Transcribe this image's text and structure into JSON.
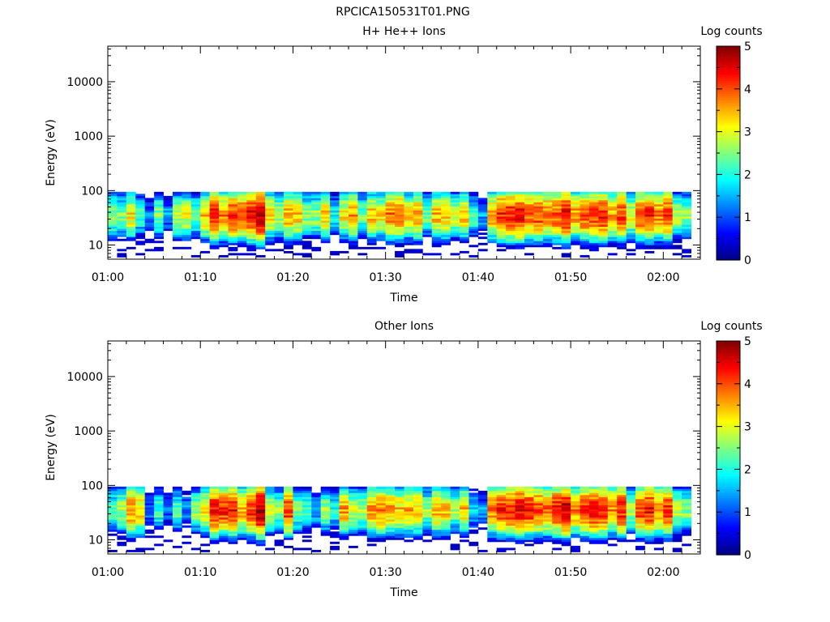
{
  "figure": {
    "title": "RPCICA150531T01.PNG"
  },
  "chart_data": [
    {
      "type": "heatmap",
      "title": "H+ He++ Ions",
      "xlabel": "Time",
      "ylabel": "Energy (eV)",
      "x_ticks": [
        "01:00",
        "01:10",
        "01:20",
        "01:30",
        "01:40",
        "01:50",
        "02:00"
      ],
      "x_range_minutes": [
        0,
        64
      ],
      "y_scale": "log",
      "y_ticks": [
        10,
        100,
        1000,
        10000
      ],
      "y_range": [
        5.5,
        45000
      ],
      "data_energy_range_eV": [
        6,
        95
      ],
      "colorbar": {
        "label": "Log counts",
        "range": [
          0,
          5
        ],
        "ticks": [
          0,
          1,
          2,
          3,
          4,
          5
        ]
      },
      "time_minutes": [
        0,
        1,
        2,
        3,
        4,
        5,
        6,
        7,
        8,
        9,
        10,
        11,
        12,
        13,
        14,
        15,
        16,
        17,
        18,
        19,
        20,
        21,
        22,
        23,
        24,
        25,
        26,
        27,
        28,
        29,
        30,
        31,
        32,
        33,
        34,
        35,
        36,
        37,
        38,
        39,
        40,
        41,
        42,
        43,
        44,
        45,
        46,
        47,
        48,
        49,
        50,
        51,
        52,
        53,
        54,
        55,
        56,
        57,
        58,
        59,
        60,
        61,
        62
      ],
      "peak_log_counts": [
        2.7,
        2.5,
        3.2,
        2.2,
        1.2,
        2.5,
        1.4,
        2.9,
        3.0,
        2.4,
        3.5,
        4.3,
        3.8,
        4.2,
        4.0,
        4.5,
        4.8,
        3.3,
        2.8,
        3.6,
        3.4,
        2.6,
        2.7,
        3.4,
        2.0,
        3.2,
        3.6,
        2.4,
        3.4,
        3.2,
        3.8,
        4.0,
        3.3,
        3.7,
        2.4,
        3.5,
        3.4,
        2.9,
        3.4,
        2.2,
        1.5,
        3.6,
        4.2,
        4.3,
        4.4,
        4.0,
        4.1,
        3.9,
        4.0,
        4.6,
        3.7,
        4.1,
        4.2,
        4.3,
        3.6,
        4.1,
        3.0,
        4.1,
        4.2,
        3.8,
        4.1,
        2.8,
        2.6
      ]
    },
    {
      "type": "heatmap",
      "title": "Other Ions",
      "xlabel": "Time",
      "ylabel": "Energy (eV)",
      "x_ticks": [
        "01:00",
        "01:10",
        "01:20",
        "01:30",
        "01:40",
        "01:50",
        "02:00"
      ],
      "x_range_minutes": [
        0,
        64
      ],
      "y_scale": "log",
      "y_ticks": [
        10,
        100,
        1000,
        10000
      ],
      "y_range": [
        5.5,
        45000
      ],
      "data_energy_range_eV": [
        6,
        95
      ],
      "colorbar": {
        "label": "Log counts",
        "range": [
          0,
          5
        ],
        "ticks": [
          0,
          1,
          2,
          3,
          4,
          5
        ]
      },
      "time_minutes": [
        0,
        1,
        2,
        3,
        4,
        5,
        6,
        7,
        8,
        9,
        10,
        11,
        12,
        13,
        14,
        15,
        16,
        17,
        18,
        19,
        20,
        21,
        22,
        23,
        24,
        25,
        26,
        27,
        28,
        29,
        30,
        31,
        32,
        33,
        34,
        35,
        36,
        37,
        38,
        39,
        40,
        41,
        42,
        43,
        44,
        45,
        46,
        47,
        48,
        49,
        50,
        51,
        52,
        53,
        54,
        55,
        56,
        57,
        58,
        59,
        60,
        61,
        62
      ],
      "peak_log_counts": [
        2.4,
        2.8,
        3.8,
        3.4,
        1.3,
        2.2,
        1.2,
        2.3,
        1.4,
        2.6,
        3.2,
        4.4,
        4.2,
        4.3,
        3.6,
        4.2,
        4.9,
        3.0,
        2.6,
        4.2,
        2.6,
        2.2,
        1.7,
        2.6,
        2.0,
        3.6,
        2.9,
        2.8,
        3.6,
        3.8,
        3.6,
        3.4,
        3.5,
        3.5,
        2.6,
        3.5,
        3.4,
        2.7,
        3.4,
        1.8,
        1.4,
        3.8,
        4.2,
        4.3,
        4.5,
        4.3,
        4.1,
        3.9,
        4.3,
        4.7,
        3.7,
        4.2,
        4.4,
        4.2,
        3.7,
        4.3,
        2.9,
        4.1,
        4.4,
        3.8,
        4.2,
        2.8,
        2.6
      ]
    }
  ]
}
